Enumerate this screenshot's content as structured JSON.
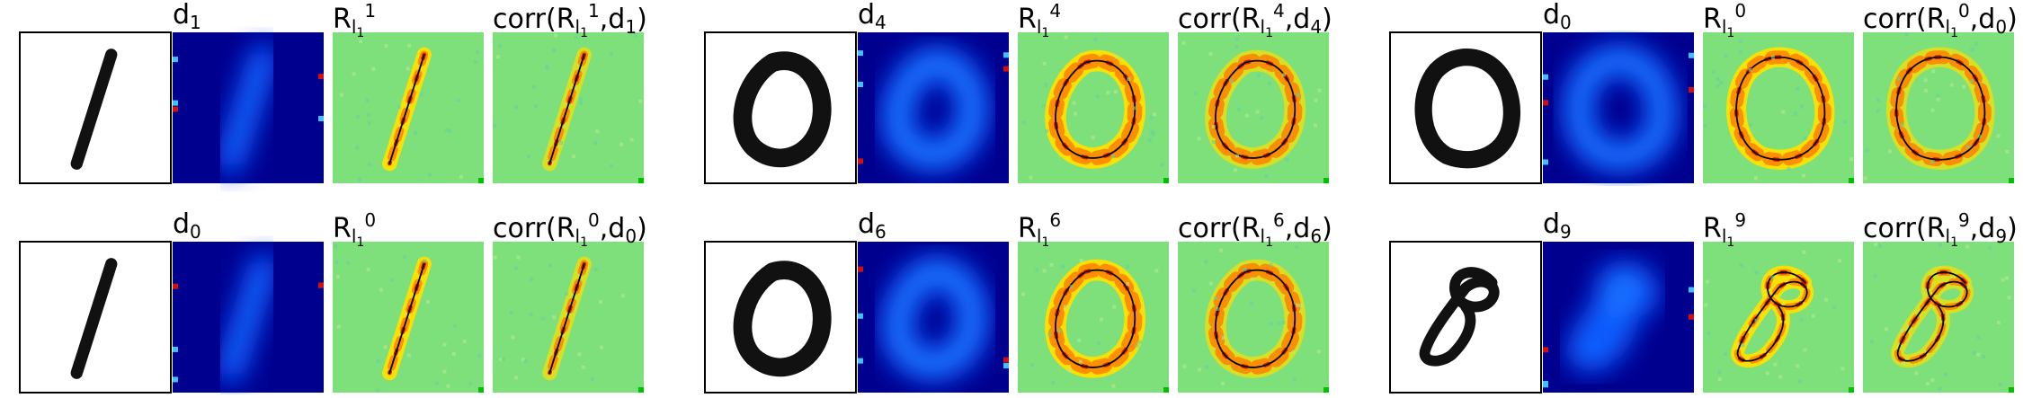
{
  "figure": {
    "panels": [
      {
        "row": 0,
        "group": 0,
        "digit": "1",
        "kind": "digit-one",
        "labels": {
          "d": "d",
          "d_sub": "1",
          "r": "R",
          "r_sub": "l",
          "r_subsub": "1",
          "r_sup": "1",
          "corr": "corr",
          "corr_sup": "1",
          "corr_d_sub": "1"
        }
      },
      {
        "row": 0,
        "group": 1,
        "digit": "0",
        "kind": "digit-zero-a",
        "labels": {
          "d": "d",
          "d_sub": "4",
          "r": "R",
          "r_sub": "l",
          "r_subsub": "1",
          "r_sup": "4",
          "corr": "corr",
          "corr_sup": "4",
          "corr_d_sub": "4"
        }
      },
      {
        "row": 0,
        "group": 2,
        "digit": "0",
        "kind": "digit-zero-b",
        "labels": {
          "d": "d",
          "d_sub": "0",
          "r": "R",
          "r_sub": "l",
          "r_subsub": "1",
          "r_sup": "0",
          "corr": "corr",
          "corr_sup": "0",
          "corr_d_sub": "0"
        }
      },
      {
        "row": 1,
        "group": 0,
        "digit": "1",
        "kind": "digit-one",
        "labels": {
          "d": "d",
          "d_sub": "0",
          "r": "R",
          "r_sub": "l",
          "r_subsub": "1",
          "r_sup": "0",
          "corr": "corr",
          "corr_sup": "0",
          "corr_d_sub": "0"
        }
      },
      {
        "row": 1,
        "group": 1,
        "digit": "0",
        "kind": "digit-zero-a",
        "labels": {
          "d": "d",
          "d_sub": "6",
          "r": "R",
          "r_sub": "l",
          "r_subsub": "1",
          "r_sup": "6",
          "corr": "corr",
          "corr_sup": "6",
          "corr_d_sub": "6"
        }
      },
      {
        "row": 1,
        "group": 2,
        "digit": "8",
        "kind": "digit-eight",
        "labels": {
          "d": "d",
          "d_sub": "9",
          "r": "R",
          "r_sub": "l",
          "r_subsub": "1",
          "r_sup": "9",
          "corr": "corr",
          "corr_sup": "9",
          "corr_d_sub": "9"
        }
      }
    ],
    "colors": {
      "heat_background": "#7ee07a",
      "dark_blue": "#00008f",
      "mid_blue": "#0040ff",
      "cyan": "#40c0ff",
      "yellow": "#ffe000",
      "orange": "#ff8000",
      "red": "#d01010",
      "digit_ink": "#111111",
      "frame": "#000000"
    }
  }
}
